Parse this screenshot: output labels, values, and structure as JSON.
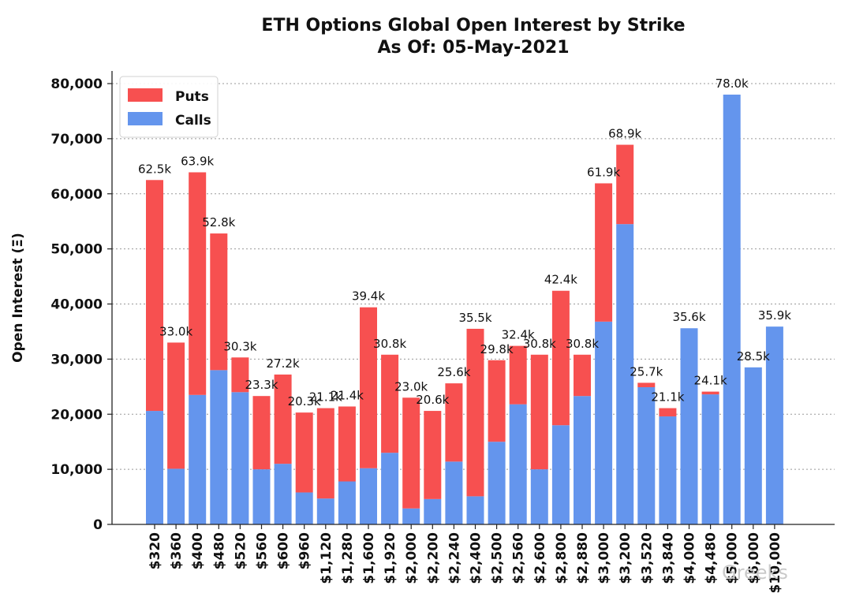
{
  "chart_data": {
    "type": "bar",
    "stacked": true,
    "title": "ETH Options Global Open Interest by Strike",
    "subtitle": "As Of: 05-May-2021",
    "ylabel": "Open Interest (Ξ)",
    "xlabel": "",
    "ylim": [
      0,
      80000
    ],
    "yticks": [
      0,
      10000,
      20000,
      30000,
      40000,
      50000,
      60000,
      70000,
      80000
    ],
    "ytick_labels": [
      "0",
      "10,000",
      "20,000",
      "30,000",
      "40,000",
      "50,000",
      "60,000",
      "70,000",
      "80,000"
    ],
    "grid": "horizontal dotted",
    "legend_position": "top-left",
    "categories": [
      "$320",
      "$360",
      "$400",
      "$480",
      "$520",
      "$560",
      "$600",
      "$960",
      "$1,120",
      "$1,280",
      "$1,600",
      "$1,920",
      "$2,000",
      "$2,200",
      "$2,240",
      "$2,400",
      "$2,500",
      "$2,560",
      "$2,600",
      "$2,800",
      "$2,880",
      "$3,000",
      "$3,200",
      "$3,520",
      "$3,840",
      "$4,000",
      "$4,480",
      "$5,000",
      "$6,000",
      "$10,000"
    ],
    "series": [
      {
        "name": "Calls",
        "color": "#6495ED",
        "values": [
          20600,
          10100,
          23500,
          28000,
          24000,
          10000,
          11000,
          5800,
          4700,
          7800,
          10200,
          13000,
          2900,
          4600,
          11400,
          5100,
          15000,
          21800,
          10000,
          18000,
          23300,
          36800,
          54500,
          24900,
          19600,
          35600,
          23600,
          78000,
          28500,
          35900
        ]
      },
      {
        "name": "Puts",
        "color": "#F75050",
        "values": [
          41900,
          22900,
          40400,
          24800,
          6300,
          13300,
          16200,
          14500,
          16400,
          13600,
          29200,
          17800,
          20100,
          16000,
          14200,
          30400,
          14800,
          10600,
          20800,
          24400,
          7500,
          25100,
          14400,
          800,
          1500,
          0,
          500,
          0,
          0,
          0
        ]
      }
    ],
    "total_labels": [
      "62.5k",
      "33.0k",
      "63.9k",
      "52.8k",
      "30.3k",
      "23.3k",
      "27.2k",
      "20.3k",
      "21.1k",
      "21.4k",
      "39.4k",
      "30.8k",
      "23.0k",
      "20.6k",
      "25.6k",
      "35.5k",
      "29.8k",
      "32.4k",
      "30.8k",
      "42.4k",
      "30.8k",
      "61.9k",
      "68.9k",
      "25.7k",
      "21.1k",
      "35.6k",
      "24.1k",
      "78.0k",
      "28.5k",
      "35.9k"
    ]
  },
  "watermark": "Greeks"
}
